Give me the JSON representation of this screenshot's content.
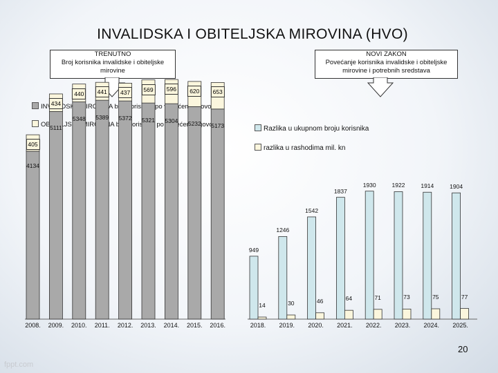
{
  "title": "INVALIDSKA I OBITELJSKA MIROVINA  (HVO)",
  "callout_left": {
    "heading": "TRENUTNO",
    "line1": "Broj korisnika invalidske i obiteljske",
    "line2": "mirovine"
  },
  "callout_right": {
    "heading": "NOVI ZAKON",
    "line1": "Povećanje korisnika invalidske i obiteljske",
    "line2": "mirovine i potrebnih sredstava"
  },
  "page_number": "20",
  "watermark": "fppt.com",
  "colors": {
    "invalid_fill": "#a9a9a9",
    "obiteljska_fill": "#fbf6dd",
    "razlika_fill": "#cfe7ec"
  },
  "chart_data": [
    {
      "type": "bar",
      "stacked": true,
      "categories": [
        "2008.",
        "2009.",
        "2010.",
        "2011.",
        "2012.",
        "2013.",
        "2014.",
        "2015.",
        "2016."
      ],
      "series": [
        {
          "name": "INVALIDSKA MIROVINA  broj korisnika po važećem Ugovoru",
          "values": [
            4134,
            5111,
            5348,
            5389,
            5372,
            5321,
            5304,
            5232,
            5173
          ]
        },
        {
          "name": "OBITELJSKA MIROVINA  broj korisnika po važećem Ugovoru",
          "values": [
            405,
            434,
            440,
            441,
            437,
            569,
            596,
            620,
            653
          ]
        }
      ],
      "invalid_labels": [
        "4134",
        "5111",
        "5348",
        "5389",
        "5372",
        "5321",
        "5304",
        "5232",
        "5173"
      ],
      "obiteljska_labels": [
        "405",
        "434",
        "440",
        "441",
        "437",
        "569",
        "596",
        "620",
        "653"
      ]
    },
    {
      "type": "bar",
      "categories": [
        "2018.",
        "2019.",
        "2020.",
        "2021.",
        "2022.",
        "2023.",
        "2024.",
        "2025."
      ],
      "series": [
        {
          "name": "Razlika u ukupnom broju korisnika",
          "values": [
            949,
            1246,
            1542,
            1837,
            1930,
            1922,
            1914,
            1904
          ]
        },
        {
          "name": "razlika u rashodima mil. kn",
          "values": [
            14,
            30,
            46,
            64,
            71,
            73,
            75,
            77
          ]
        }
      ],
      "razlika_labels": [
        "949",
        "1246",
        "1542",
        "1837",
        "1930",
        "1922",
        "1914",
        "1904"
      ],
      "rashodi_labels": [
        "14",
        "30",
        "46",
        "64",
        "71",
        "73",
        "75",
        "77"
      ]
    }
  ]
}
